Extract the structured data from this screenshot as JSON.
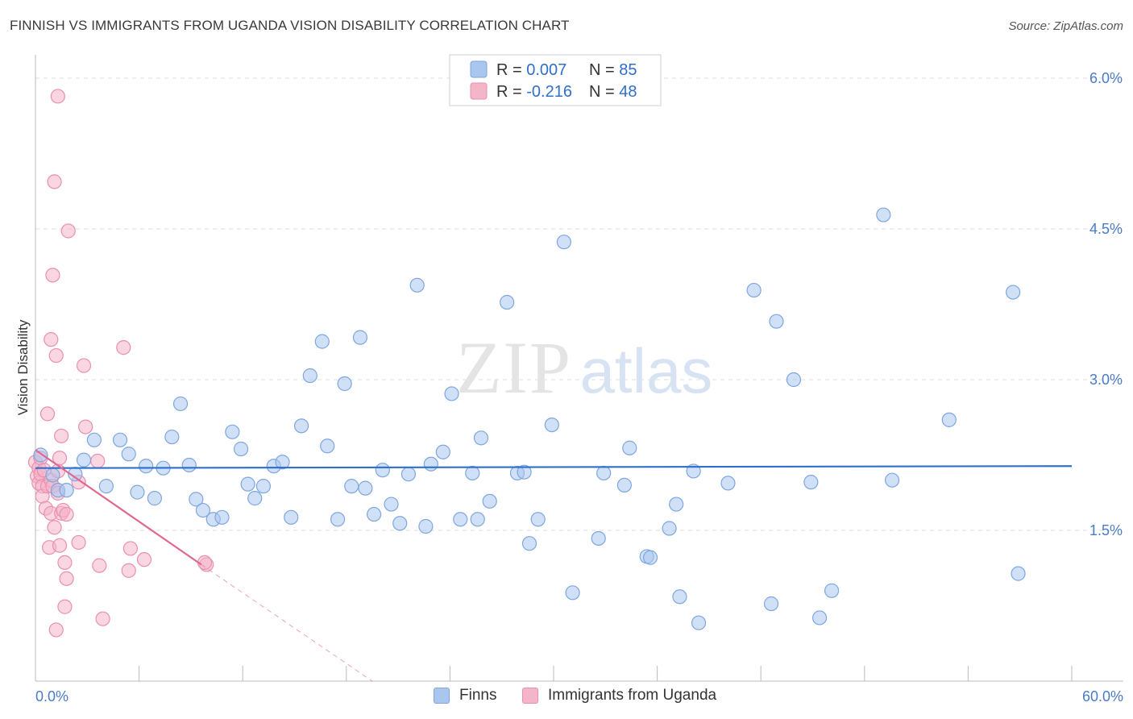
{
  "title": "FINNISH VS IMMIGRANTS FROM UGANDA VISION DISABILITY CORRELATION CHART",
  "source": "Source: ZipAtlas.com",
  "watermark": {
    "zip": "ZIP",
    "atlas": "atlas"
  },
  "colors": {
    "finns_fill": "#a9c6ee",
    "finns_stroke": "#7ea6df",
    "finns_line": "#2f6fcc",
    "uganda_fill": "#f4b5c9",
    "uganda_stroke": "#ea8fb0",
    "uganda_line": "#e06690",
    "grid": "#dcdcdc",
    "axis_text": "#4a7ac8"
  },
  "legend": {
    "rows": [
      {
        "r_label": "R = ",
        "r_value": "0.007",
        "n_label": "N = ",
        "n_value": "85"
      },
      {
        "r_label": "R = ",
        "r_value": "-0.216",
        "n_label": "N = ",
        "n_value": "48"
      }
    ]
  },
  "bottom_legend": {
    "finns": "Finns",
    "uganda": "Immigrants from Uganda"
  },
  "chart_data": {
    "type": "scatter",
    "title": "FINNISH VS IMMIGRANTS FROM UGANDA VISION DISABILITY CORRELATION CHART",
    "xlabel": "",
    "ylabel": "Vision Disability",
    "xlim": [
      0,
      60
    ],
    "ylim": [
      0,
      6.25
    ],
    "x_tick_labels": [
      "0.0%",
      "60.0%"
    ],
    "y_ticks": [
      1.5,
      3.0,
      4.5,
      6.0
    ],
    "y_tick_labels": [
      "1.5%",
      "3.0%",
      "4.5%",
      "6.0%"
    ],
    "grid": true,
    "series": [
      {
        "name": "Finns",
        "r": 0.007,
        "n": 85,
        "trend": {
          "x": [
            0,
            60
          ],
          "y": [
            2.12,
            2.14
          ]
        },
        "points": [
          [
            0.3,
            2.25
          ],
          [
            1.0,
            2.05
          ],
          [
            1.3,
            1.9
          ],
          [
            1.8,
            1.9
          ],
          [
            2.3,
            2.06
          ],
          [
            2.8,
            2.2
          ],
          [
            3.4,
            2.4
          ],
          [
            4.1,
            1.94
          ],
          [
            4.9,
            2.4
          ],
          [
            5.4,
            2.26
          ],
          [
            5.9,
            1.88
          ],
          [
            6.4,
            2.14
          ],
          [
            6.9,
            1.82
          ],
          [
            7.4,
            2.12
          ],
          [
            7.9,
            2.43
          ],
          [
            8.4,
            2.76
          ],
          [
            8.9,
            2.15
          ],
          [
            9.3,
            1.81
          ],
          [
            9.7,
            1.7
          ],
          [
            10.3,
            1.61
          ],
          [
            10.8,
            1.63
          ],
          [
            11.4,
            2.48
          ],
          [
            11.9,
            2.31
          ],
          [
            12.3,
            1.96
          ],
          [
            12.7,
            1.82
          ],
          [
            13.2,
            1.94
          ],
          [
            13.8,
            2.14
          ],
          [
            14.3,
            2.18
          ],
          [
            14.8,
            1.63
          ],
          [
            15.4,
            2.54
          ],
          [
            15.9,
            3.04
          ],
          [
            16.6,
            3.38
          ],
          [
            16.9,
            2.34
          ],
          [
            17.5,
            1.61
          ],
          [
            17.9,
            2.96
          ],
          [
            18.3,
            1.94
          ],
          [
            18.8,
            3.42
          ],
          [
            19.1,
            1.92
          ],
          [
            19.6,
            1.66
          ],
          [
            20.1,
            2.1
          ],
          [
            20.6,
            1.76
          ],
          [
            21.1,
            1.57
          ],
          [
            21.6,
            2.06
          ],
          [
            22.1,
            3.94
          ],
          [
            22.6,
            1.54
          ],
          [
            22.9,
            2.16
          ],
          [
            23.6,
            2.28
          ],
          [
            24.1,
            2.86
          ],
          [
            24.6,
            1.61
          ],
          [
            25.3,
            2.07
          ],
          [
            25.6,
            1.61
          ],
          [
            25.8,
            2.42
          ],
          [
            26.3,
            1.79
          ],
          [
            27.3,
            3.77
          ],
          [
            27.9,
            2.07
          ],
          [
            28.3,
            2.08
          ],
          [
            28.6,
            1.37
          ],
          [
            29.1,
            1.61
          ],
          [
            29.9,
            2.55
          ],
          [
            30.6,
            4.37
          ],
          [
            31.1,
            0.88
          ],
          [
            32.6,
            1.42
          ],
          [
            32.9,
            2.07
          ],
          [
            34.1,
            1.95
          ],
          [
            34.4,
            2.32
          ],
          [
            35.4,
            1.24
          ],
          [
            35.6,
            1.23
          ],
          [
            36.7,
            1.52
          ],
          [
            37.1,
            1.76
          ],
          [
            37.3,
            0.84
          ],
          [
            38.1,
            2.09
          ],
          [
            38.4,
            0.58
          ],
          [
            40.1,
            1.97
          ],
          [
            41.6,
            3.89
          ],
          [
            42.6,
            0.77
          ],
          [
            42.9,
            3.58
          ],
          [
            43.9,
            3.0
          ],
          [
            44.9,
            1.98
          ],
          [
            45.4,
            0.63
          ],
          [
            46.1,
            0.9
          ],
          [
            49.1,
            4.64
          ],
          [
            49.6,
            2.0
          ],
          [
            52.9,
            2.6
          ],
          [
            56.6,
            3.87
          ],
          [
            56.9,
            1.07
          ]
        ]
      },
      {
        "name": "Immigrants from Uganda",
        "r": -0.216,
        "n": 48,
        "trend": {
          "x": [
            0,
            9.6
          ],
          "y": [
            2.3,
            1.16
          ]
        },
        "trend_extension": {
          "x": [
            9.6,
            19.5
          ],
          "y": [
            1.16,
            0.0
          ]
        },
        "points": [
          [
            0.0,
            2.18
          ],
          [
            0.1,
            2.04
          ],
          [
            0.2,
            2.12
          ],
          [
            0.2,
            1.97
          ],
          [
            0.3,
            2.22
          ],
          [
            0.3,
            2.06
          ],
          [
            0.4,
            1.94
          ],
          [
            0.4,
            1.84
          ],
          [
            0.5,
            2.1
          ],
          [
            0.6,
            1.72
          ],
          [
            0.7,
            2.66
          ],
          [
            0.7,
            1.94
          ],
          [
            0.8,
            1.33
          ],
          [
            0.9,
            1.67
          ],
          [
            0.9,
            2.0
          ],
          [
            0.9,
            3.4
          ],
          [
            1.0,
            4.04
          ],
          [
            1.0,
            1.94
          ],
          [
            1.1,
            1.53
          ],
          [
            1.1,
            4.97
          ],
          [
            1.2,
            3.24
          ],
          [
            1.2,
            0.51
          ],
          [
            1.3,
            2.09
          ],
          [
            1.3,
            1.87
          ],
          [
            1.3,
            5.82
          ],
          [
            1.4,
            1.35
          ],
          [
            1.4,
            2.22
          ],
          [
            1.5,
            1.67
          ],
          [
            1.5,
            2.44
          ],
          [
            1.6,
            1.7
          ],
          [
            1.7,
            1.18
          ],
          [
            1.7,
            0.74
          ],
          [
            1.8,
            1.02
          ],
          [
            1.8,
            1.66
          ],
          [
            1.9,
            4.48
          ],
          [
            2.5,
            1.38
          ],
          [
            2.5,
            1.98
          ],
          [
            2.8,
            3.14
          ],
          [
            2.9,
            2.53
          ],
          [
            3.6,
            2.19
          ],
          [
            3.7,
            1.15
          ],
          [
            3.9,
            0.62
          ],
          [
            5.1,
            3.32
          ],
          [
            5.4,
            1.1
          ],
          [
            5.5,
            1.32
          ],
          [
            6.3,
            1.21
          ],
          [
            9.9,
            1.16
          ],
          [
            9.8,
            1.18
          ]
        ]
      }
    ]
  }
}
